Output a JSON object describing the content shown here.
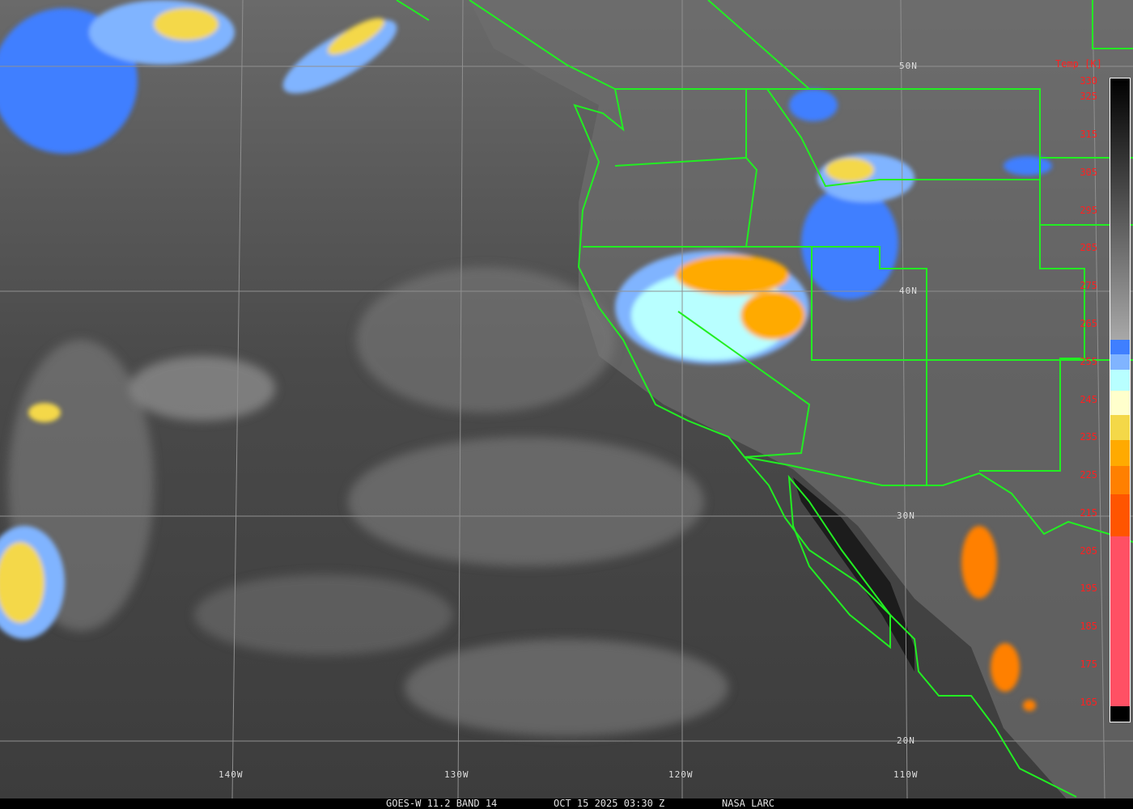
{
  "image": {
    "satellite": "GOES-W",
    "caption": {
      "sensor": "GOES-W 11.2 BAND 14",
      "datetime": "OCT 15 2025 03:30 Z",
      "source": "NASA LARC"
    },
    "latitude_labels": [
      "50N",
      "40N",
      "30N",
      "20N"
    ],
    "longitude_labels": [
      "140W",
      "130W",
      "120W",
      "110W"
    ],
    "colorbar": {
      "title": "Temp [K]",
      "range_K": [
        160,
        330
      ],
      "tick_labels": [
        "330",
        "325",
        "315",
        "305",
        "295",
        "285",
        "275",
        "265",
        "255",
        "245",
        "235",
        "225",
        "215",
        "205",
        "195",
        "185",
        "175",
        "165"
      ],
      "stops": [
        {
          "from": 330,
          "to": 261,
          "color_top": "#000000",
          "color_bottom": "#a8a8a8"
        },
        {
          "from": 261,
          "to": 257,
          "color": "#3f7fff"
        },
        {
          "from": 257,
          "to": 253,
          "color": "#80b4ff"
        },
        {
          "from": 253,
          "to": 247.5,
          "color": "#b8ffff"
        },
        {
          "from": 247.5,
          "to": 241,
          "color": "#ffffcc"
        },
        {
          "from": 241,
          "to": 234.5,
          "color": "#f4d848"
        },
        {
          "from": 234.5,
          "to": 227.5,
          "color": "#ffaa00"
        },
        {
          "from": 227.5,
          "to": 220,
          "color": "#ff8000"
        },
        {
          "from": 220,
          "to": 209,
          "color": "#ff5500"
        },
        {
          "from": 209,
          "to": 164,
          "color": "#ff5064"
        },
        {
          "from": 164,
          "to": 160,
          "color": "#000000"
        }
      ]
    },
    "colors": {
      "borders": "#22ee22",
      "grid": "#909090",
      "labels": "#ff2020"
    }
  }
}
